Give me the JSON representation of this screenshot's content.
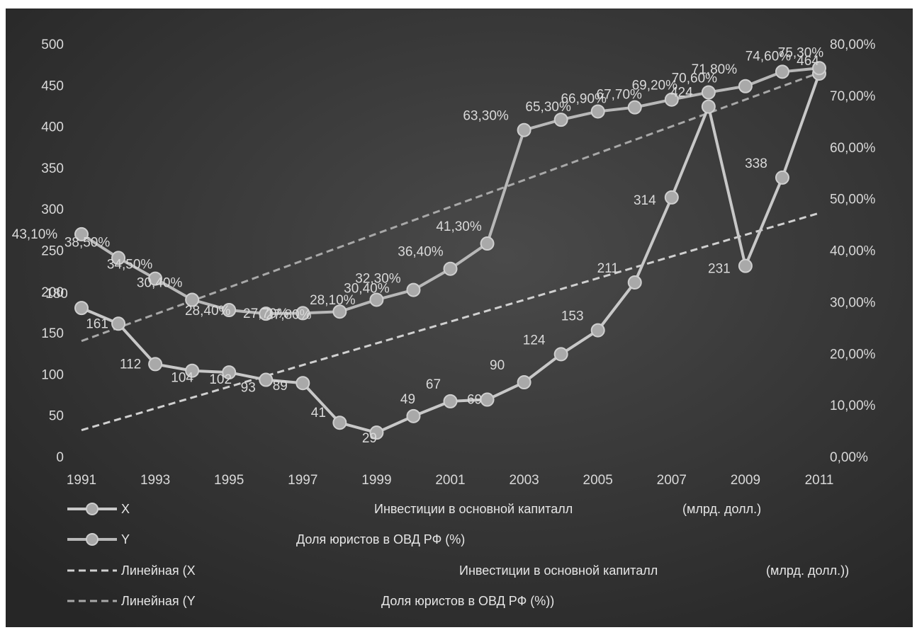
{
  "chart_data": {
    "type": "line",
    "x": [
      1991,
      1992,
      1993,
      1994,
      1995,
      1996,
      1997,
      1998,
      1999,
      2000,
      2001,
      2002,
      2003,
      2004,
      2005,
      2006,
      2007,
      2008,
      2009,
      2010,
      2011
    ],
    "x_tick_labels": [
      "1991",
      "1993",
      "1995",
      "1997",
      "1999",
      "2001",
      "2003",
      "2005",
      "2007",
      "2009",
      "2011"
    ],
    "y_left_ticks": [
      "0",
      "50",
      "100",
      "150",
      "200",
      "250",
      "300",
      "350",
      "400",
      "450",
      "500"
    ],
    "y_left_range": [
      0,
      500
    ],
    "y_right_ticks": [
      "0,00%",
      "10,00%",
      "20,00%",
      "30,00%",
      "40,00%",
      "50,00%",
      "60,00%",
      "70,00%",
      "80,00%"
    ],
    "y_right_range": [
      0,
      80
    ],
    "grid": false,
    "legend_position": "bottom",
    "background": "#3a3a3a",
    "series": [
      {
        "name": "X",
        "legend_desc": "Инвестиции в основной капиталл",
        "legend_unit": "(млрд. долл.)",
        "axis": "left",
        "color": "#c8c8c8",
        "values": [
          180,
          161,
          112,
          104,
          102,
          93,
          89,
          41,
          29,
          49,
          67,
          69,
          90,
          124,
          153,
          211,
          314,
          424,
          231,
          338,
          464
        ],
        "labels": [
          "180",
          "161",
          "112",
          "104",
          "102",
          "93",
          "89",
          "41",
          "29",
          "49",
          "67",
          "69",
          "90",
          "124",
          "153",
          "211",
          "314",
          "424",
          "231",
          "338",
          "464"
        ]
      },
      {
        "name": "Y",
        "legend_desc": "Доля юристов в ОВД РФ (%)",
        "legend_unit": "",
        "axis": "right",
        "color": "#b8b8b8",
        "values": [
          43.1,
          38.5,
          34.5,
          30.4,
          28.4,
          27.7,
          27.8,
          28.1,
          30.4,
          32.3,
          36.4,
          41.3,
          63.3,
          65.3,
          66.9,
          67.7,
          69.2,
          70.6,
          71.8,
          74.6,
          75.3
        ],
        "labels": [
          "43,10%",
          "38,50%",
          "34,50%",
          "30,40%",
          "28,40%",
          "27,70%",
          "27,80%",
          "28,10%",
          "30,40%",
          "32,30%",
          "36,40%",
          "41,30%",
          "63,30%",
          "65,30%",
          "66,90%",
          "67,70%",
          "69,20%",
          "70,60%",
          "71,80%",
          "74,60%",
          "75,30%"
        ]
      }
    ],
    "trendlines": [
      {
        "legend_prefix": "Линейная (X",
        "legend_desc": "Инвестиции в основной капиталл",
        "legend_unit": "(млрд. долл.))",
        "axis": "left",
        "color": "#d0d0d0",
        "start": 32,
        "end": 295
      },
      {
        "legend_prefix": "Линейная (Y",
        "legend_desc": "Доля юристов в ОВД РФ (%))",
        "legend_unit": "",
        "axis": "right",
        "color": "#a8a8a8",
        "start": 22.4,
        "end": 74.4
      }
    ]
  }
}
